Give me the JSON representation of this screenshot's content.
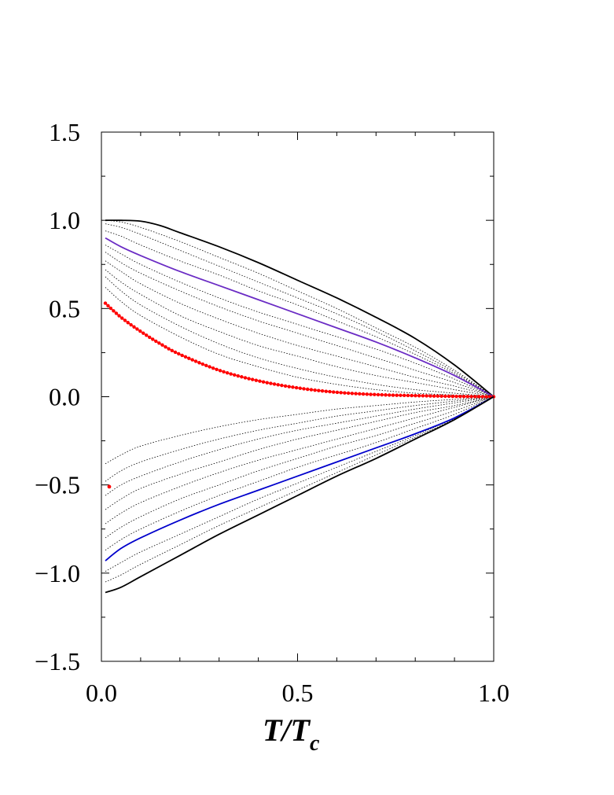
{
  "chart_data": {
    "type": "line",
    "title": "",
    "xlabel": "T/T",
    "xlabel_sub": "c",
    "ylabel": "",
    "xlim": [
      0.0,
      1.0
    ],
    "ylim": [
      -1.5,
      1.5
    ],
    "x_ticks": [
      "0.0",
      "0.5",
      "1.0"
    ],
    "y_ticks": [
      "−1.5",
      "−1.0",
      "−0.5",
      "0.0",
      "0.5",
      "1.0",
      "1.5"
    ],
    "x_tick_values": [
      0.0,
      0.5,
      1.0
    ],
    "y_tick_values": [
      -1.5,
      -1.0,
      -0.5,
      0.0,
      0.5,
      1.0,
      1.5
    ],
    "grid": false,
    "legend": "none",
    "series": [
      {
        "style": "solid",
        "color": "#000000",
        "x": [
          0.01,
          0.05,
          0.1,
          0.15,
          0.2,
          0.3,
          0.4,
          0.5,
          0.6,
          0.7,
          0.8,
          0.9,
          1.0
        ],
        "y": [
          1.0,
          1.0,
          0.995,
          0.97,
          0.93,
          0.85,
          0.76,
          0.66,
          0.56,
          0.45,
          0.33,
          0.18,
          0.0
        ]
      },
      {
        "style": "solid",
        "color": "#6a2bc4",
        "x": [
          0.01,
          0.05,
          0.1,
          0.2,
          0.3,
          0.4,
          0.5,
          0.6,
          0.7,
          0.8,
          0.9,
          1.0
        ],
        "y": [
          0.9,
          0.85,
          0.8,
          0.71,
          0.63,
          0.55,
          0.47,
          0.39,
          0.31,
          0.22,
          0.12,
          0.0
        ]
      },
      {
        "style": "dotted-markers",
        "color": "#ff0000",
        "x": [
          0.01,
          0.05,
          0.1,
          0.15,
          0.2,
          0.3,
          0.4,
          0.5,
          0.6,
          0.7,
          0.8,
          0.9,
          1.0
        ],
        "y": [
          0.53,
          0.45,
          0.37,
          0.3,
          0.24,
          0.15,
          0.09,
          0.05,
          0.025,
          0.012,
          0.006,
          0.002,
          0.0
        ]
      },
      {
        "style": "markers",
        "color": "#ff0000",
        "x": [
          0.02
        ],
        "y": [
          -0.51
        ]
      },
      {
        "style": "solid",
        "color": "#0000cc",
        "x": [
          0.01,
          0.05,
          0.1,
          0.2,
          0.3,
          0.4,
          0.5,
          0.6,
          0.7,
          0.8,
          0.9,
          1.0
        ],
        "y": [
          -0.93,
          -0.86,
          -0.8,
          -0.7,
          -0.61,
          -0.53,
          -0.45,
          -0.37,
          -0.29,
          -0.21,
          -0.12,
          0.0
        ]
      },
      {
        "style": "solid",
        "color": "#000000",
        "x": [
          0.01,
          0.05,
          0.1,
          0.2,
          0.3,
          0.4,
          0.5,
          0.6,
          0.7,
          0.8,
          0.9,
          1.0
        ],
        "y": [
          -1.11,
          -1.08,
          -1.02,
          -0.9,
          -0.78,
          -0.67,
          -0.56,
          -0.45,
          -0.35,
          -0.24,
          -0.13,
          0.0
        ]
      },
      {
        "style": "thin-dotted",
        "color": "#000000",
        "x": [
          0.01,
          0.05,
          0.1,
          0.2,
          0.3,
          0.4,
          0.5,
          0.6,
          0.7,
          0.8,
          0.9,
          1.0
        ],
        "y": [
          1.0,
          0.99,
          0.96,
          0.88,
          0.79,
          0.7,
          0.6,
          0.5,
          0.39,
          0.28,
          0.15,
          0.0
        ]
      },
      {
        "style": "thin-dotted",
        "color": "#000000",
        "x": [
          0.01,
          0.05,
          0.1,
          0.2,
          0.3,
          0.4,
          0.5,
          0.6,
          0.7,
          0.8,
          0.9,
          1.0
        ],
        "y": [
          0.98,
          0.96,
          0.92,
          0.83,
          0.74,
          0.65,
          0.56,
          0.47,
          0.37,
          0.26,
          0.14,
          0.0
        ]
      },
      {
        "style": "thin-dotted",
        "color": "#000000",
        "x": [
          0.01,
          0.05,
          0.1,
          0.2,
          0.3,
          0.4,
          0.5,
          0.6,
          0.7,
          0.8,
          0.9,
          1.0
        ],
        "y": [
          0.94,
          0.91,
          0.86,
          0.77,
          0.69,
          0.6,
          0.52,
          0.43,
          0.34,
          0.24,
          0.13,
          0.0
        ]
      },
      {
        "style": "thin-dotted",
        "color": "#000000",
        "x": [
          0.01,
          0.05,
          0.1,
          0.2,
          0.3,
          0.4,
          0.5,
          0.6,
          0.7,
          0.8,
          0.9,
          1.0
        ],
        "y": [
          0.86,
          0.81,
          0.75,
          0.65,
          0.56,
          0.48,
          0.41,
          0.34,
          0.27,
          0.19,
          0.1,
          0.0
        ]
      },
      {
        "style": "thin-dotted",
        "color": "#000000",
        "x": [
          0.01,
          0.05,
          0.1,
          0.2,
          0.3,
          0.4,
          0.5,
          0.6,
          0.7,
          0.8,
          0.9,
          1.0
        ],
        "y": [
          0.82,
          0.76,
          0.7,
          0.6,
          0.51,
          0.43,
          0.36,
          0.29,
          0.22,
          0.15,
          0.08,
          0.0
        ]
      },
      {
        "style": "thin-dotted",
        "color": "#000000",
        "x": [
          0.01,
          0.05,
          0.1,
          0.2,
          0.3,
          0.4,
          0.5,
          0.6,
          0.7,
          0.8,
          0.9,
          1.0
        ],
        "y": [
          0.77,
          0.71,
          0.64,
          0.53,
          0.44,
          0.36,
          0.29,
          0.23,
          0.17,
          0.11,
          0.06,
          0.0
        ]
      },
      {
        "style": "thin-dotted",
        "color": "#000000",
        "x": [
          0.01,
          0.05,
          0.1,
          0.2,
          0.3,
          0.4,
          0.5,
          0.6,
          0.7,
          0.8,
          0.9,
          1.0
        ],
        "y": [
          0.72,
          0.65,
          0.58,
          0.46,
          0.37,
          0.29,
          0.23,
          0.17,
          0.12,
          0.08,
          0.04,
          0.0
        ]
      },
      {
        "style": "thin-dotted",
        "color": "#000000",
        "x": [
          0.01,
          0.05,
          0.1,
          0.2,
          0.3,
          0.4,
          0.5,
          0.6,
          0.7,
          0.8,
          0.9,
          1.0
        ],
        "y": [
          0.68,
          0.6,
          0.52,
          0.4,
          0.3,
          0.22,
          0.16,
          0.11,
          0.07,
          0.04,
          0.02,
          0.0
        ]
      },
      {
        "style": "thin-dotted",
        "color": "#000000",
        "x": [
          0.01,
          0.05,
          0.1,
          0.2,
          0.3,
          0.4,
          0.5,
          0.6,
          0.7,
          0.8,
          0.9,
          1.0
        ],
        "y": [
          0.62,
          0.54,
          0.46,
          0.34,
          0.24,
          0.17,
          0.11,
          0.07,
          0.04,
          0.02,
          0.01,
          0.0
        ]
      },
      {
        "style": "thin-dotted",
        "color": "#000000",
        "x": [
          0.01,
          0.05,
          0.1,
          0.2,
          0.3,
          0.4,
          0.5,
          0.6,
          0.7,
          0.8,
          0.9,
          1.0
        ],
        "y": [
          -0.38,
          -0.33,
          -0.28,
          -0.22,
          -0.17,
          -0.13,
          -0.1,
          -0.07,
          -0.05,
          -0.03,
          -0.015,
          0.0
        ]
      },
      {
        "style": "thin-dotted",
        "color": "#000000",
        "x": [
          0.01,
          0.05,
          0.1,
          0.2,
          0.3,
          0.4,
          0.5,
          0.6,
          0.7,
          0.8,
          0.9,
          1.0
        ],
        "y": [
          -0.48,
          -0.42,
          -0.37,
          -0.3,
          -0.24,
          -0.19,
          -0.15,
          -0.11,
          -0.08,
          -0.05,
          -0.025,
          0.0
        ]
      },
      {
        "style": "thin-dotted",
        "color": "#000000",
        "x": [
          0.01,
          0.05,
          0.1,
          0.2,
          0.3,
          0.4,
          0.5,
          0.6,
          0.7,
          0.8,
          0.9,
          1.0
        ],
        "y": [
          -0.56,
          -0.5,
          -0.45,
          -0.37,
          -0.3,
          -0.24,
          -0.19,
          -0.15,
          -0.11,
          -0.07,
          -0.035,
          0.0
        ]
      },
      {
        "style": "thin-dotted",
        "color": "#000000",
        "x": [
          0.01,
          0.05,
          0.1,
          0.2,
          0.3,
          0.4,
          0.5,
          0.6,
          0.7,
          0.8,
          0.9,
          1.0
        ],
        "y": [
          -0.64,
          -0.58,
          -0.52,
          -0.44,
          -0.37,
          -0.3,
          -0.24,
          -0.19,
          -0.14,
          -0.09,
          -0.05,
          0.0
        ]
      },
      {
        "style": "thin-dotted",
        "color": "#000000",
        "x": [
          0.01,
          0.05,
          0.1,
          0.2,
          0.3,
          0.4,
          0.5,
          0.6,
          0.7,
          0.8,
          0.9,
          1.0
        ],
        "y": [
          -0.72,
          -0.66,
          -0.6,
          -0.51,
          -0.43,
          -0.36,
          -0.3,
          -0.24,
          -0.18,
          -0.12,
          -0.06,
          0.0
        ]
      },
      {
        "style": "thin-dotted",
        "color": "#000000",
        "x": [
          0.01,
          0.05,
          0.1,
          0.2,
          0.3,
          0.4,
          0.5,
          0.6,
          0.7,
          0.8,
          0.9,
          1.0
        ],
        "y": [
          -0.8,
          -0.74,
          -0.68,
          -0.58,
          -0.5,
          -0.42,
          -0.35,
          -0.28,
          -0.22,
          -0.15,
          -0.08,
          0.0
        ]
      },
      {
        "style": "thin-dotted",
        "color": "#000000",
        "x": [
          0.01,
          0.05,
          0.1,
          0.2,
          0.3,
          0.4,
          0.5,
          0.6,
          0.7,
          0.8,
          0.9,
          1.0
        ],
        "y": [
          -0.87,
          -0.81,
          -0.75,
          -0.65,
          -0.56,
          -0.48,
          -0.4,
          -0.33,
          -0.26,
          -0.18,
          -0.1,
          0.0
        ]
      },
      {
        "style": "thin-dotted",
        "color": "#000000",
        "x": [
          0.01,
          0.05,
          0.1,
          0.2,
          0.3,
          0.4,
          0.5,
          0.6,
          0.7,
          0.8,
          0.9,
          1.0
        ],
        "y": [
          -0.99,
          -0.94,
          -0.88,
          -0.78,
          -0.68,
          -0.58,
          -0.49,
          -0.4,
          -0.31,
          -0.22,
          -0.12,
          0.0
        ]
      },
      {
        "style": "thin-dotted",
        "color": "#000000",
        "x": [
          0.01,
          0.05,
          0.1,
          0.2,
          0.3,
          0.4,
          0.5,
          0.6,
          0.7,
          0.8,
          0.9,
          1.0
        ],
        "y": [
          -1.05,
          -1.01,
          -0.95,
          -0.84,
          -0.73,
          -0.63,
          -0.53,
          -0.43,
          -0.33,
          -0.23,
          -0.125,
          0.0
        ]
      }
    ]
  }
}
